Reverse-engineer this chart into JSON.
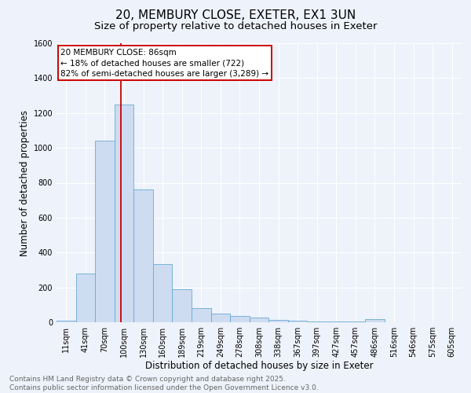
{
  "title": "20, MEMBURY CLOSE, EXETER, EX1 3UN",
  "subtitle": "Size of property relative to detached houses in Exeter",
  "xlabel": "Distribution of detached houses by size in Exeter",
  "ylabel": "Number of detached properties",
  "categories": [
    "11sqm",
    "41sqm",
    "70sqm",
    "100sqm",
    "130sqm",
    "160sqm",
    "189sqm",
    "219sqm",
    "249sqm",
    "278sqm",
    "308sqm",
    "338sqm",
    "367sqm",
    "397sqm",
    "427sqm",
    "457sqm",
    "486sqm",
    "516sqm",
    "546sqm",
    "575sqm",
    "605sqm"
  ],
  "values": [
    10,
    280,
    1040,
    1250,
    760,
    335,
    190,
    80,
    50,
    35,
    25,
    15,
    10,
    5,
    5,
    5,
    20,
    2,
    2,
    2,
    2
  ],
  "bar_color": "#cddcf0",
  "bar_edge_color": "#6aaad4",
  "red_line_index": 2.82,
  "annotation_line1": "20 MEMBURY CLOSE: 86sqm",
  "annotation_line2": "← 18% of detached houses are smaller (722)",
  "annotation_line3": "82% of semi-detached houses are larger (3,289) →",
  "annotation_box_color": "#ffffff",
  "annotation_box_edge": "#cc0000",
  "ylim": [
    0,
    1600
  ],
  "yticks": [
    0,
    200,
    400,
    600,
    800,
    1000,
    1200,
    1400,
    1600
  ],
  "background_color": "#eef2fa",
  "grid_color": "#ffffff",
  "footer_line1": "Contains HM Land Registry data © Crown copyright and database right 2025.",
  "footer_line2": "Contains public sector information licensed under the Open Government Licence v3.0.",
  "title_fontsize": 11,
  "subtitle_fontsize": 9.5,
  "axis_label_fontsize": 8.5,
  "tick_fontsize": 7,
  "annotation_fontsize": 7.5,
  "footer_fontsize": 6.5
}
